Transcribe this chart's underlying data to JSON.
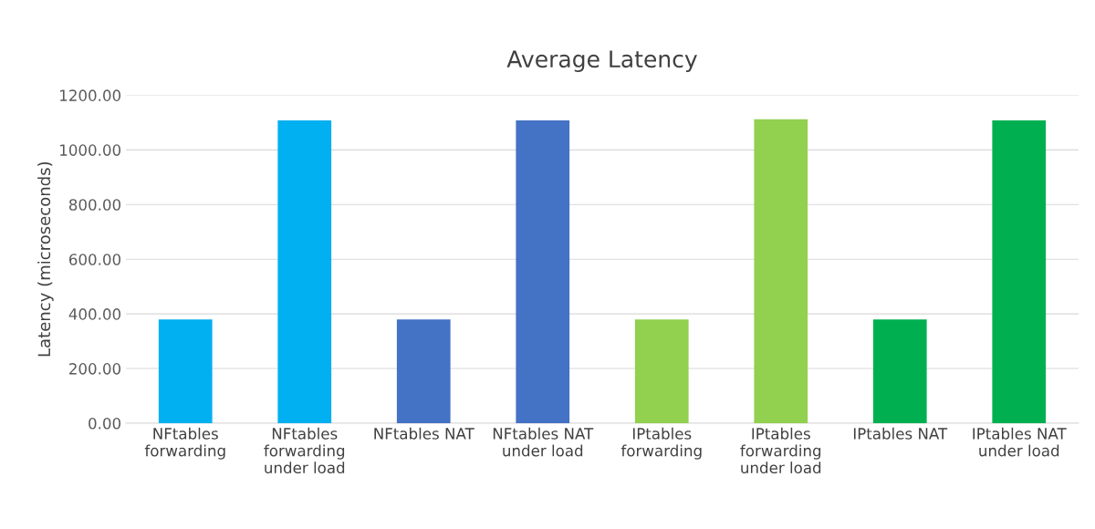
{
  "chart_data": {
    "type": "bar",
    "title": "Average Latency",
    "ylabel": "Latency (microseconds)",
    "categories": [
      "NFtables\nforwarding",
      "NFtables\nforwarding\nunder load",
      "NFtables NAT",
      "NFtables NAT\nunder load",
      "IPtables\nforwarding",
      "IPtables\nforwarding\nunder load",
      "IPtables NAT",
      "IPtables NAT\nunder load"
    ],
    "values": [
      380,
      1108,
      380,
      1108,
      380,
      1112,
      380,
      1108
    ],
    "colors": [
      "#00b0f0",
      "#00b0f0",
      "#4472c4",
      "#4472c4",
      "#92d050",
      "#92d050",
      "#00b050",
      "#00b050"
    ],
    "ylim": [
      0,
      1200
    ],
    "yticks": [
      {
        "value": 0,
        "label": "0.00"
      },
      {
        "value": 200,
        "label": "200.00"
      },
      {
        "value": 400,
        "label": "400.00"
      },
      {
        "value": 600,
        "label": "600.00"
      },
      {
        "value": 800,
        "label": "800.00"
      },
      {
        "value": 1000,
        "label": "1000.00"
      },
      {
        "value": 1200,
        "label": "1200.00"
      }
    ],
    "grid": "y",
    "legend": false
  }
}
